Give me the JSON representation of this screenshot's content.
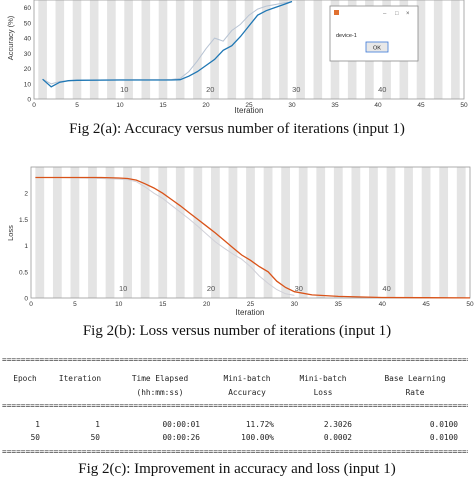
{
  "chart_data": [
    {
      "type": "line",
      "title": "",
      "caption": "Fig 2(a): Accuracy versus number of iterations (input 1)",
      "xlabel": "Iteration",
      "ylabel": "Accuracy (%)",
      "xlim": [
        0,
        50
      ],
      "ylim": [
        0,
        65
      ],
      "x_ticks": [
        0,
        5,
        10,
        15,
        20,
        25,
        30,
        35,
        40,
        45,
        50
      ],
      "y_ticks": [
        0,
        10,
        20,
        30,
        40,
        50,
        60
      ],
      "epoch_labels": [
        10,
        20,
        30,
        40
      ],
      "grid": "vertical shaded bands",
      "series": [
        {
          "color": "#1f77b4",
          "x": [
            1,
            2,
            3,
            4,
            5,
            10,
            15,
            16,
            17,
            18,
            19,
            20,
            21,
            22,
            23,
            24,
            25,
            26,
            27,
            28,
            29,
            30
          ],
          "values": [
            13,
            8,
            11,
            12,
            12.3,
            12.5,
            12.5,
            12.5,
            12.7,
            15,
            18,
            22,
            26,
            32,
            35,
            41,
            48,
            55,
            58,
            60,
            62,
            64
          ]
        },
        {
          "color": "#b8c4d4",
          "x": [
            1,
            2,
            3,
            4,
            5,
            10,
            15,
            16,
            17,
            18,
            19,
            20,
            21,
            22,
            23,
            24,
            25,
            26,
            27,
            28,
            29,
            30
          ],
          "values": [
            13,
            10,
            11.5,
            12,
            12.4,
            12.6,
            12.7,
            12.8,
            13.5,
            18,
            25,
            33,
            40,
            38,
            45,
            49,
            55,
            59,
            61,
            62,
            63,
            64
          ]
        }
      ],
      "dialog": {
        "text": "device-1",
        "button": "OK"
      }
    },
    {
      "type": "line",
      "title": "",
      "caption": "Fig 2(b): Loss versus number of iterations (input 1)",
      "xlabel": "Iteration",
      "ylabel": "Loss",
      "xlim": [
        0,
        50
      ],
      "ylim": [
        0,
        2.5
      ],
      "x_ticks": [
        0,
        5,
        10,
        15,
        20,
        25,
        30,
        35,
        40,
        45,
        50
      ],
      "y_ticks": [
        0,
        0.5,
        1,
        1.5,
        2
      ],
      "epoch_labels": [
        10,
        20,
        30,
        40
      ],
      "grid": "vertical shaded bands",
      "series": [
        {
          "color": "#d95319",
          "x": [
            0.5,
            3,
            6,
            8,
            10,
            11,
            12,
            13,
            14,
            15,
            16,
            17,
            18,
            19,
            20,
            21,
            22,
            23,
            24,
            25,
            26,
            27,
            28,
            29,
            30,
            32,
            35,
            40,
            45,
            50
          ],
          "values": [
            2.3,
            2.3,
            2.3,
            2.3,
            2.29,
            2.28,
            2.25,
            2.18,
            2.1,
            2.0,
            1.88,
            1.76,
            1.63,
            1.5,
            1.37,
            1.24,
            1.1,
            0.96,
            0.82,
            0.72,
            0.6,
            0.5,
            0.32,
            0.2,
            0.12,
            0.06,
            0.03,
            0.01,
            0.005,
            0.002
          ]
        },
        {
          "color": "#d0d0d8",
          "x": [
            0.5,
            3,
            6,
            8,
            10,
            11,
            12,
            13,
            14,
            15,
            16,
            17,
            18,
            19,
            20,
            21,
            22,
            23,
            24,
            25,
            26,
            27,
            28,
            29,
            30
          ],
          "values": [
            2.3,
            2.3,
            2.29,
            2.28,
            2.27,
            2.26,
            2.22,
            2.12,
            2.0,
            1.9,
            1.77,
            1.64,
            1.51,
            1.37,
            1.22,
            1.07,
            0.95,
            0.84,
            0.74,
            0.6,
            0.42,
            0.28,
            0.16,
            0.08,
            0.05
          ]
        }
      ]
    },
    {
      "type": "table",
      "caption": "Fig 2(c): Improvement in accuracy and loss (input 1)",
      "separator": "======================================================================================================================",
      "header_row1": [
        "Epoch",
        "Iteration",
        "Time Elapsed",
        "Mini-batch",
        "Mini-batch",
        "Base Learning"
      ],
      "header_row2": [
        "",
        "",
        "(hh:mm:ss)",
        "Accuracy",
        "Loss",
        "Rate"
      ],
      "rows": [
        [
          "1",
          "1",
          "00:00:01",
          "11.72%",
          "2.3026",
          "0.0100"
        ],
        [
          "50",
          "50",
          "00:00:26",
          "100.00%",
          "0.0002",
          "0.0100"
        ]
      ]
    }
  ]
}
